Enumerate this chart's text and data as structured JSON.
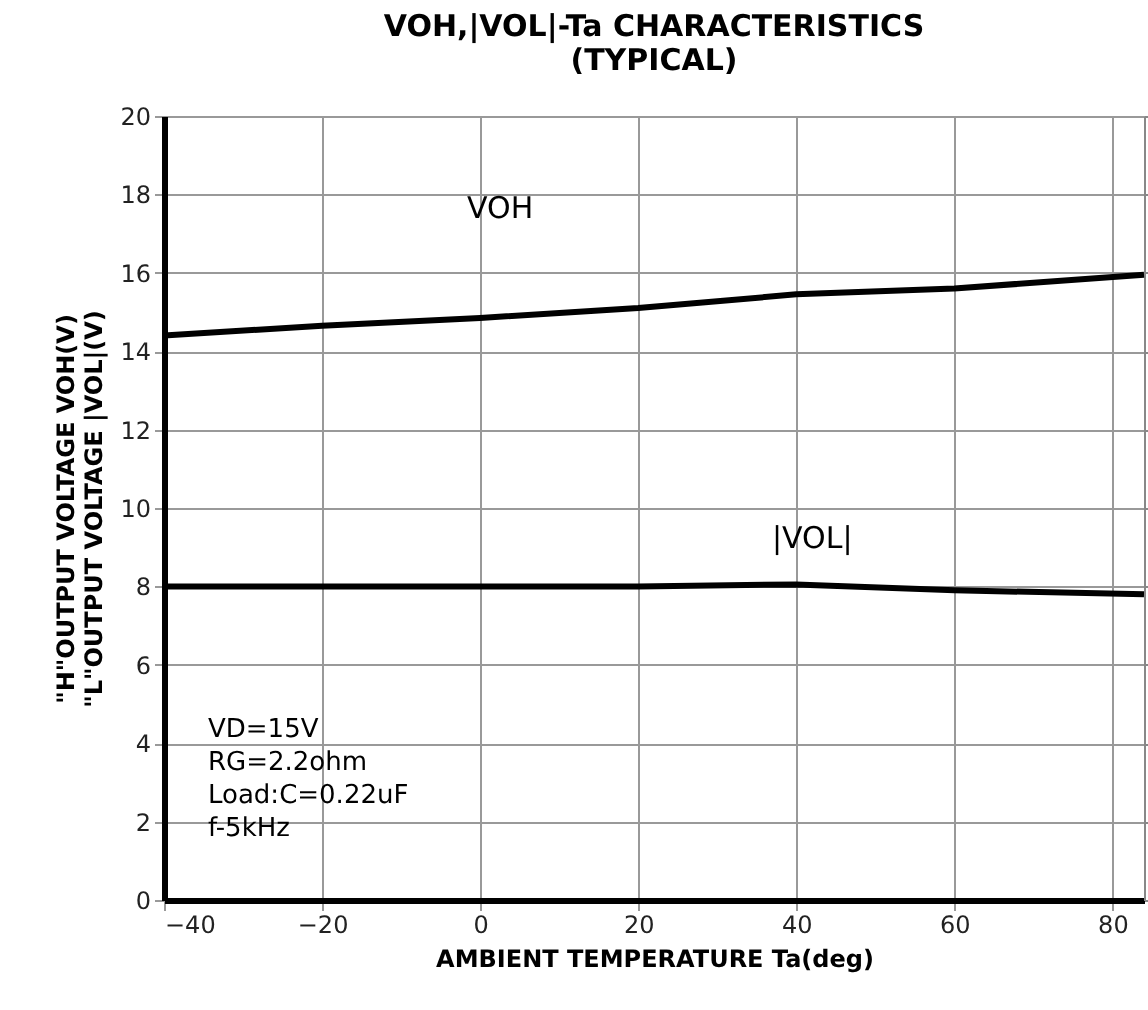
{
  "chart_data": {
    "type": "line",
    "title": "VOH,|VOL|-Ta CHARACTERISTICS\n(TYPICAL)",
    "xlabel": "AMBIENT TEMPERATURE Ta(deg)",
    "ylabel": "\"H\"OUTPUT VOLTAGE VOH(V)\n\"L\"OUTPUT VOLTAGE |VOL|(V)",
    "x": [
      -40,
      -20,
      0,
      20,
      40,
      60,
      84
    ],
    "series": [
      {
        "name": "VOH",
        "color": "#000000",
        "values": [
          14.4,
          14.65,
          14.85,
          15.1,
          15.45,
          15.6,
          15.95
        ]
      },
      {
        "name": "|VOL|",
        "color": "#000000",
        "values": [
          8.0,
          8.0,
          8.0,
          8.0,
          8.05,
          7.9,
          7.8
        ]
      }
    ],
    "annotations": [
      "VD=15V",
      "RG=2.2ohm",
      "Load:C=0.22uF",
      "f-5kHz"
    ],
    "xlim": [
      -40,
      84
    ],
    "xticks": [
      -40,
      -20,
      0,
      20,
      40,
      60,
      80
    ],
    "ylim": [
      0,
      20
    ],
    "yticks": [
      0,
      2,
      4,
      6,
      8,
      10,
      12,
      14,
      16,
      18,
      20
    ],
    "grid": true,
    "legend": false,
    "marker": "none",
    "line_style": "solid"
  }
}
